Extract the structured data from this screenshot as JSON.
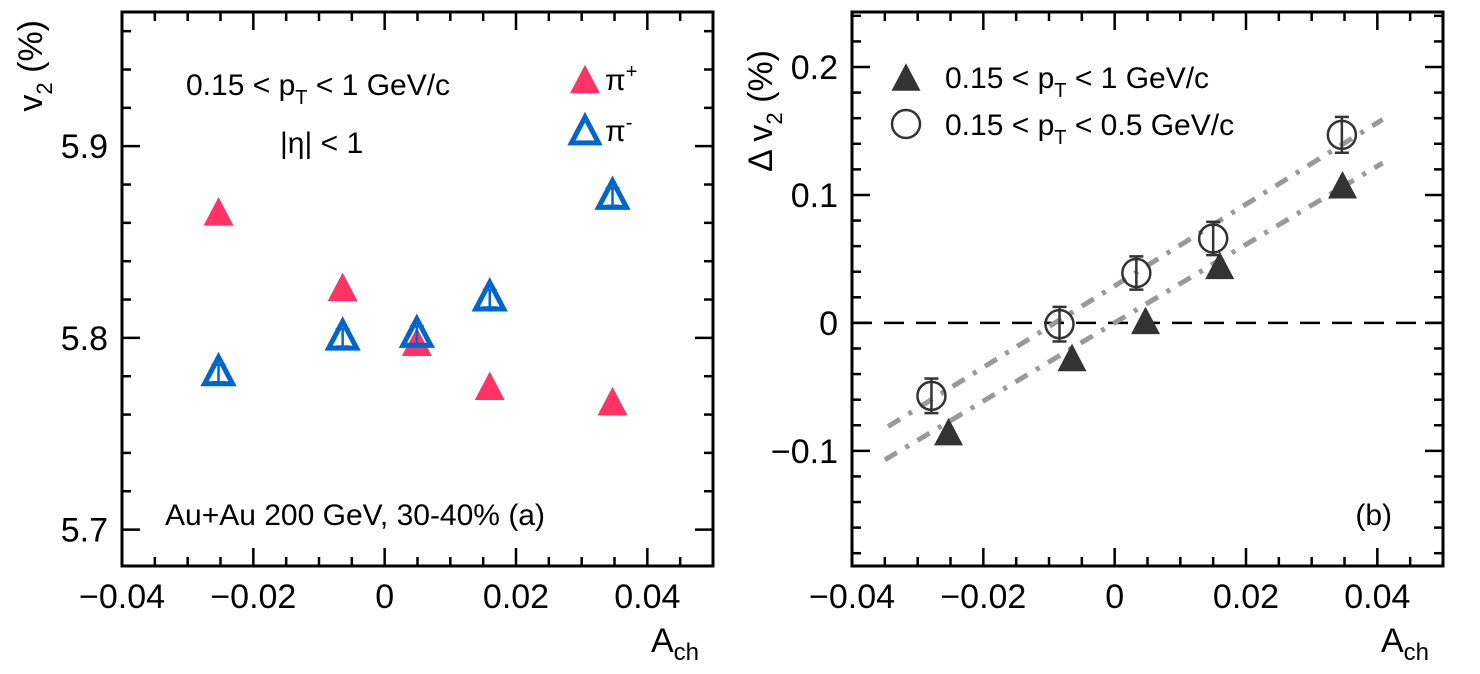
{
  "colors": {
    "pi_plus": "#ff3366",
    "pi_minus": "#0066cc",
    "dark": "#333333",
    "fit": "#999999"
  },
  "chart_data": [
    {
      "type": "scatter",
      "panel": "(a)",
      "xlabel": "A",
      "xlabel_sub": "ch",
      "ylabel": "v",
      "ylabel_sub": "2",
      "ylabel_unit": " (%)",
      "xlim": [
        -0.04,
        0.05
      ],
      "ylim": [
        5.681,
        5.97
      ],
      "xticks": [
        -0.04,
        -0.02,
        0,
        0.02,
        0.04
      ],
      "xtick_labels": [
        "−0.04",
        "−0.02",
        "0",
        "0.02",
        "0.04"
      ],
      "yticks": [
        5.7,
        5.8,
        5.9
      ],
      "ytick_labels": [
        "5.7",
        "5.8",
        "5.9"
      ],
      "annotations": {
        "cut_pre": "0.15 < p",
        "cut_sub": "T",
        "cut_post": " < 1 GeV/c",
        "eta": "|η| < 1",
        "system": "Au+Au 200 GeV, 30-40% (a)"
      },
      "legend": {
        "position": "top-right",
        "entries": [
          {
            "label": "π",
            "sup": "+"
          },
          {
            "label": "π",
            "sup": "-"
          }
        ]
      },
      "series": [
        {
          "name": "pi+",
          "marker": "filled-triangle",
          "x": [
            -0.0253,
            -0.0064,
            0.0049,
            0.016,
            0.0347
          ],
          "y": [
            5.866,
            5.8266,
            5.798,
            5.775,
            5.767
          ],
          "err": [
            0.002,
            0.002,
            0.002,
            0.002,
            0.002
          ]
        },
        {
          "name": "pi-",
          "marker": "open-triangle",
          "x": [
            -0.0253,
            -0.0064,
            0.0049,
            0.016,
            0.0347
          ],
          "y": [
            5.783,
            5.8016,
            5.803,
            5.822,
            5.875
          ],
          "err": [
            0.003,
            0.003,
            0.003,
            0.003,
            0.003
          ]
        }
      ]
    },
    {
      "type": "scatter",
      "panel": "(b)",
      "xlabel": "A",
      "xlabel_sub": "ch",
      "ylabel": "Δ v",
      "ylabel_sub": "2",
      "ylabel_unit": " (%)",
      "xlim": [
        -0.04,
        0.05
      ],
      "ylim": [
        -0.19,
        0.243
      ],
      "xticks": [
        -0.04,
        -0.02,
        0,
        0.02,
        0.04
      ],
      "xtick_labels": [
        "−0.04",
        "−0.02",
        "0",
        "0.02",
        "0.04"
      ],
      "yticks": [
        -0.1,
        0,
        0.1,
        0.2
      ],
      "ytick_labels": [
        "−0.1",
        "0",
        "0.1",
        "0.2"
      ],
      "annotations": {
        "panel_label": "(b)"
      },
      "legend": {
        "position": "top-left",
        "entries": [
          {
            "pre": "0.15 < p",
            "sub": "T",
            "post": " < 1 GeV/c"
          },
          {
            "pre": "0.15 < p",
            "sub": "T",
            "post": " < 0.5 GeV/c"
          }
        ]
      },
      "series": [
        {
          "name": "0.15 < pT < 1 GeV/c",
          "marker": "filled-triangle",
          "x": [
            -0.0253,
            -0.0065,
            0.0047,
            0.016,
            0.0347
          ],
          "y": [
            -0.085,
            -0.027,
            0.002,
            0.045,
            0.108
          ],
          "err": [
            0.003,
            0.003,
            0.003,
            0.003,
            0.003
          ]
        },
        {
          "name": "0.15 < pT < 0.5 GeV/c",
          "marker": "open-circle",
          "x": [
            -0.0279,
            -0.0084,
            0.0033,
            0.015,
            0.0346
          ],
          "y": [
            -0.057,
            -0.001,
            0.039,
            0.066,
            0.147
          ],
          "err": [
            0.0135,
            0.0135,
            0.013,
            0.013,
            0.014
          ]
        }
      ],
      "fits": [
        {
          "name": "fit 0.15<pT<0.5",
          "x": [
            -0.0345,
            0.0408
          ],
          "y": [
            -0.081,
            0.159
          ]
        },
        {
          "name": "fit 0.15<pT<1",
          "x": [
            -0.035,
            0.0408
          ],
          "y": [
            -0.107,
            0.125
          ]
        }
      ],
      "reference_line": {
        "y": 0,
        "style": "dashed"
      }
    }
  ]
}
